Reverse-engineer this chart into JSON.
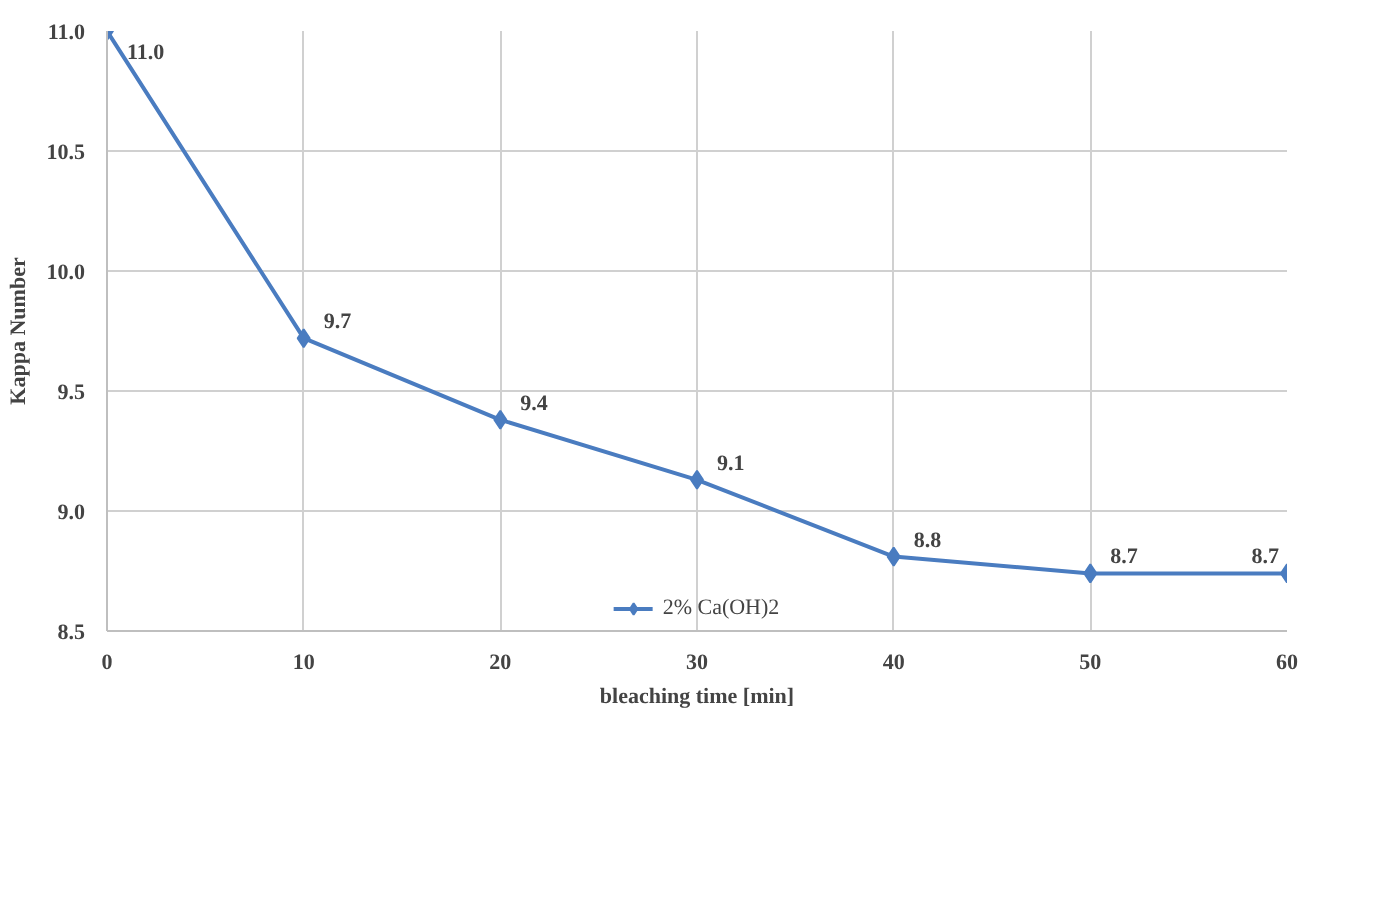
{
  "chart_data": {
    "type": "line",
    "xlabel": "bleaching time [min]",
    "ylabel": "Kappa Number",
    "x": [
      0,
      10,
      20,
      30,
      40,
      50,
      60
    ],
    "series": [
      {
        "name": "2% Ca(OH)2",
        "color": "#4a7cc0",
        "values": [
          11.0,
          9.72,
          9.38,
          9.13,
          8.81,
          8.74,
          8.74
        ],
        "value_labels": [
          "11.0",
          "9.7",
          "9.4",
          "9.1",
          "8.8",
          "8.7",
          "8.7"
        ]
      }
    ],
    "xlim": [
      0,
      60
    ],
    "xticks": [
      0,
      10,
      20,
      30,
      40,
      50,
      60
    ],
    "ylim": [
      8.5,
      11.0
    ],
    "yticks": [
      {
        "value": 8.5,
        "label": "8.5"
      },
      {
        "value": 9.0,
        "label": "9.0"
      },
      {
        "value": 9.5,
        "label": "9.5"
      },
      {
        "value": 10.0,
        "label": "10.0"
      },
      {
        "value": 10.5,
        "label": "10.5"
      },
      {
        "value": 11.0,
        "label": "11.0"
      }
    ],
    "grid": true,
    "legend": "bottom",
    "marker": "diamond",
    "line_style": "solid"
  }
}
